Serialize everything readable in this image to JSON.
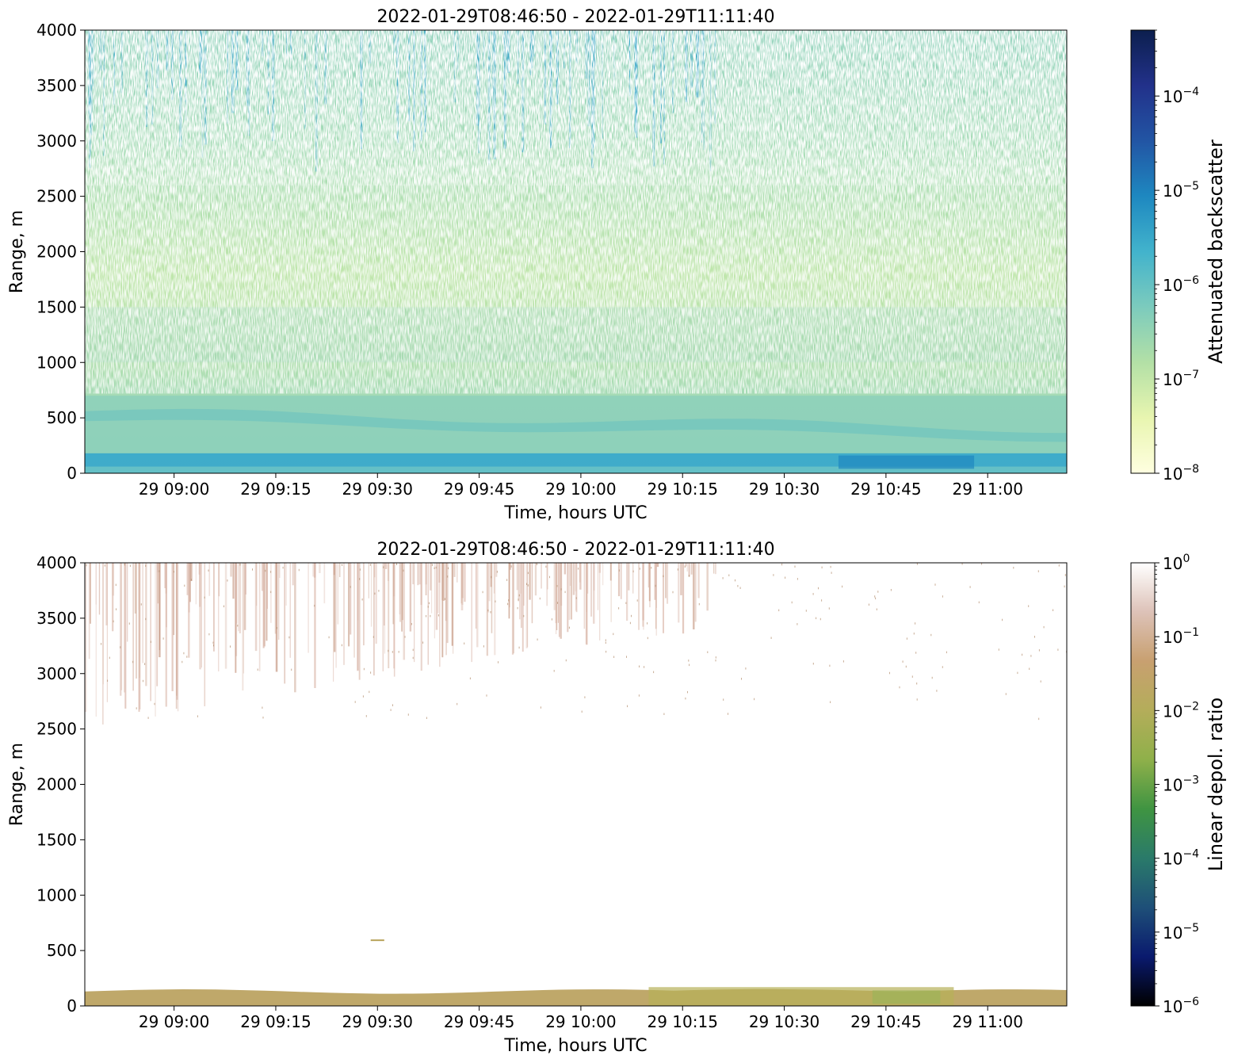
{
  "chart_data": [
    {
      "type": "heatmap",
      "title": "2022-01-29T08:46:50 - 2022-01-29T11:11:40",
      "xlabel": "Time, hours UTC",
      "ylabel": "Range, m",
      "x_ticks": [
        "29 09:00",
        "29 09:15",
        "29 09:30",
        "29 09:45",
        "29 10:00",
        "29 10:15",
        "29 10:30",
        "29 10:45",
        "29 11:00"
      ],
      "x_tick_values": [
        "2022-01-29T09:00",
        "2022-01-29T09:15",
        "2022-01-29T09:30",
        "2022-01-29T09:45",
        "2022-01-29T10:00",
        "2022-01-29T10:15",
        "2022-01-29T10:30",
        "2022-01-29T10:45",
        "2022-01-29T11:00"
      ],
      "xlim": [
        "2022-01-29T08:46:50",
        "2022-01-29T11:11:40"
      ],
      "y_ticks": [
        0,
        500,
        1000,
        1500,
        2000,
        2500,
        3000,
        3500,
        4000
      ],
      "ylim": [
        0,
        4000
      ],
      "colorbar": {
        "label": "Attenuated backscatter",
        "scale": "log",
        "range": [
          1e-08,
          0.0005
        ],
        "tick_exponents": [
          -8,
          -7,
          -6,
          -5,
          -4
        ],
        "colormap": [
          "#ffffe0",
          "#e8f5b0",
          "#b3e0a6",
          "#7ccbbd",
          "#42b3cc",
          "#1e88c0",
          "#2255a4",
          "#22318a",
          "#0c1f4e"
        ]
      },
      "features": [
        {
          "name": "near-surface layer",
          "range_m": [
            0,
            180
          ],
          "level": "~1e-5"
        },
        {
          "name": "boundary layer",
          "range_m": [
            180,
            700
          ],
          "level": "~5e-7"
        },
        {
          "name": "elevated aerosol",
          "range_m": [
            1000,
            1500
          ],
          "level": "~3e-7"
        },
        {
          "name": "noisy upper range",
          "range_m": [
            1500,
            4000
          ],
          "level": "~1e-7 to 1e-6"
        },
        {
          "name": "fall streaks",
          "range_m": [
            3500,
            4000
          ],
          "time": [
            "08:46",
            "10:20"
          ],
          "level": "~5e-6"
        }
      ]
    },
    {
      "type": "heatmap",
      "title": "2022-01-29T08:46:50 - 2022-01-29T11:11:40",
      "xlabel": "Time, hours UTC",
      "ylabel": "Range, m",
      "x_ticks": [
        "29 09:00",
        "29 09:15",
        "29 09:30",
        "29 09:45",
        "29 10:00",
        "29 10:15",
        "29 10:30",
        "29 10:45",
        "29 11:00"
      ],
      "x_tick_values": [
        "2022-01-29T09:00",
        "2022-01-29T09:15",
        "2022-01-29T09:30",
        "2022-01-29T09:45",
        "2022-01-29T10:00",
        "2022-01-29T10:15",
        "2022-01-29T10:30",
        "2022-01-29T10:45",
        "2022-01-29T11:00"
      ],
      "xlim": [
        "2022-01-29T08:46:50",
        "2022-01-29T11:11:40"
      ],
      "y_ticks": [
        0,
        500,
        1000,
        1500,
        2000,
        2500,
        3000,
        3500,
        4000
      ],
      "ylim": [
        0,
        4000
      ],
      "colorbar": {
        "label": "Linear depol. ratio",
        "scale": "log",
        "range": [
          1e-06,
          1
        ],
        "tick_exponents": [
          -6,
          -5,
          -4,
          -3,
          -2,
          -1,
          0
        ],
        "colormap": [
          "#000000",
          "#0a1a6e",
          "#1e4f78",
          "#2a7a6a",
          "#3f9442",
          "#8fb04a",
          "#b4ad5a",
          "#c8a070",
          "#ddc2b8",
          "#ffffff"
        ]
      },
      "features": [
        {
          "name": "surface layer",
          "range_m": [
            0,
            170
          ],
          "level": "~0.05"
        },
        {
          "name": "cirrus fall streaks",
          "range_m": [
            3500,
            4000
          ],
          "time": [
            "08:46",
            "10:20"
          ],
          "level": "~0.3"
        },
        {
          "name": "isolated points",
          "range_m": [
            580,
            600
          ],
          "time": [
            "09:29",
            "09:31"
          ],
          "level": "~0.05"
        }
      ]
    }
  ]
}
